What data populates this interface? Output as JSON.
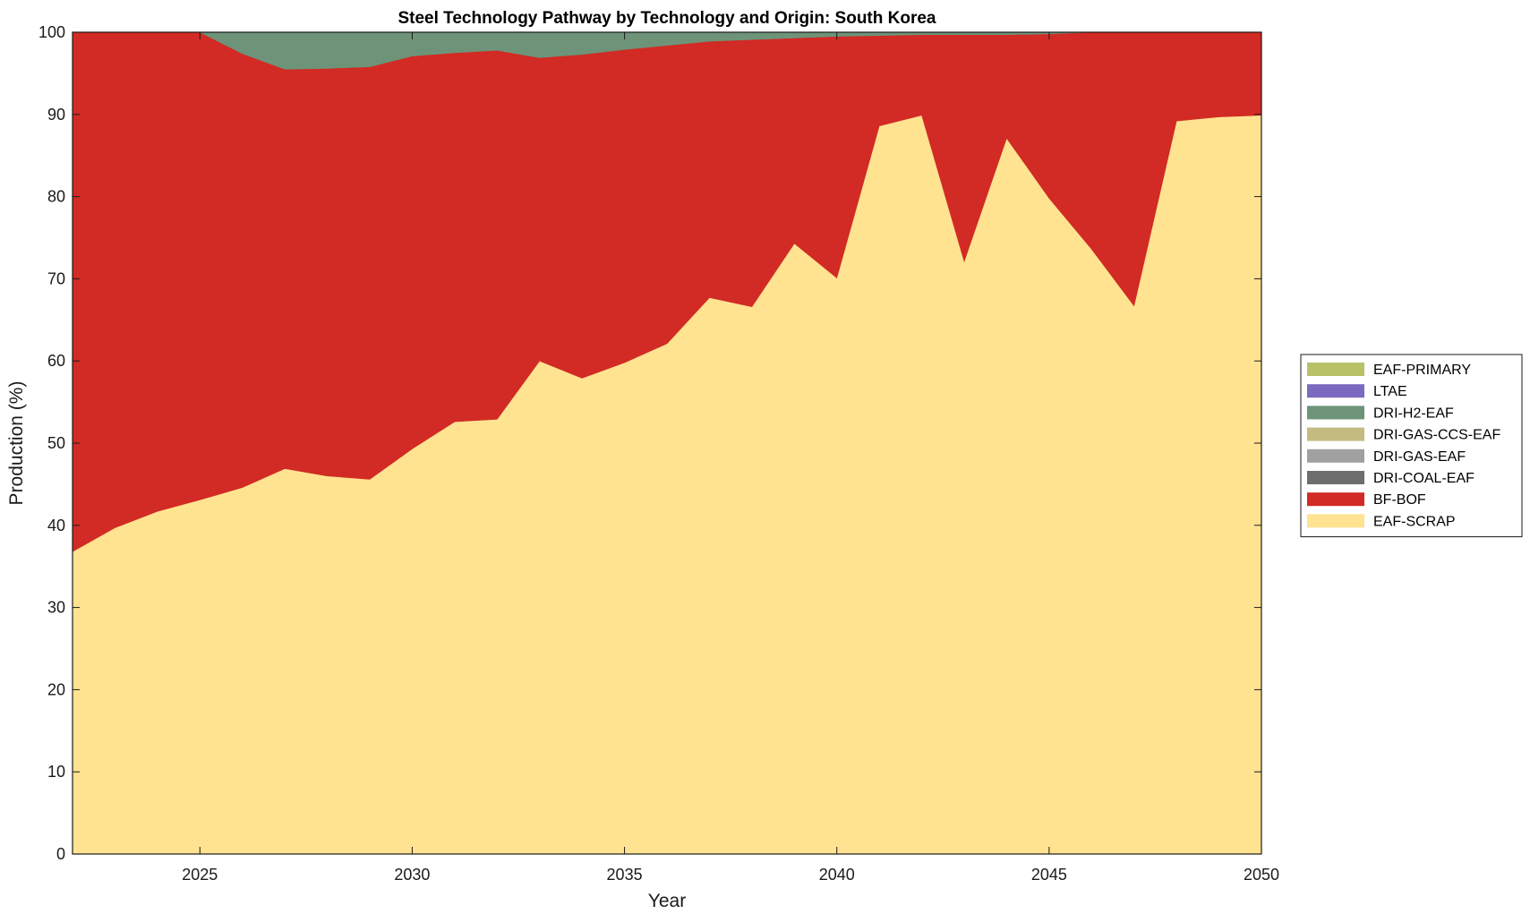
{
  "chart_data": {
    "type": "area",
    "title": "Steel Technology Pathway by Technology and Origin: South Korea",
    "xlabel": "Year",
    "ylabel": "Production (%)",
    "xlim": [
      2022,
      2050
    ],
    "ylim": [
      0,
      100
    ],
    "xticks": [
      2025,
      2030,
      2035,
      2040,
      2045,
      2050
    ],
    "yticks": [
      0,
      10,
      20,
      30,
      40,
      50,
      60,
      70,
      80,
      90,
      100
    ],
    "grid": false,
    "legend_position": "right",
    "x": [
      2022,
      2023,
      2024,
      2025,
      2026,
      2027,
      2028,
      2029,
      2030,
      2031,
      2032,
      2033,
      2034,
      2035,
      2036,
      2037,
      2038,
      2039,
      2040,
      2041,
      2042,
      2043,
      2044,
      2045,
      2046,
      2047,
      2048,
      2049,
      2050
    ],
    "series": [
      {
        "name": "EAF-SCRAP",
        "color": "#ffe391",
        "values": [
          36.8,
          39.7,
          41.7,
          43.1,
          44.6,
          46.9,
          46.0,
          45.6,
          49.3,
          52.6,
          52.9,
          60.0,
          57.9,
          59.8,
          62.1,
          67.7,
          66.6,
          74.3,
          70.1,
          88.6,
          89.9,
          72.1,
          87.1,
          79.8,
          73.6,
          66.7,
          89.2,
          89.7,
          89.9
        ]
      },
      {
        "name": "BF-BOF",
        "color": "#d22a24",
        "values": [
          63.2,
          60.3,
          58.3,
          56.9,
          52.8,
          48.6,
          49.6,
          50.2,
          47.8,
          44.9,
          44.9,
          36.9,
          39.4,
          38.1,
          36.3,
          31.2,
          32.5,
          25.0,
          29.4,
          11.0,
          9.8,
          27.6,
          12.6,
          20.0,
          26.4,
          33.3,
          10.8,
          10.3,
          10.1
        ]
      },
      {
        "name": "DRI-COAL-EAF",
        "color": "#6e6e6e",
        "values": [
          0,
          0,
          0,
          0,
          0,
          0,
          0,
          0,
          0,
          0,
          0,
          0,
          0,
          0,
          0,
          0,
          0,
          0,
          0,
          0,
          0,
          0,
          0,
          0,
          0,
          0,
          0,
          0,
          0
        ]
      },
      {
        "name": "DRI-GAS-EAF",
        "color": "#a0a0a0",
        "values": [
          0,
          0,
          0,
          0,
          0,
          0,
          0,
          0,
          0,
          0,
          0,
          0,
          0,
          0,
          0,
          0,
          0,
          0,
          0,
          0,
          0,
          0,
          0,
          0,
          0,
          0,
          0,
          0,
          0
        ]
      },
      {
        "name": "DRI-GAS-CCS-EAF",
        "color": "#c3bb80",
        "values": [
          0,
          0,
          0,
          0,
          0,
          0,
          0,
          0,
          0,
          0,
          0,
          0,
          0,
          0,
          0,
          0,
          0,
          0,
          0,
          0,
          0,
          0,
          0,
          0,
          0,
          0,
          0,
          0,
          0
        ]
      },
      {
        "name": "DRI-H2-EAF",
        "color": "#6d9479",
        "values": [
          0,
          0,
          0,
          0,
          2.6,
          4.5,
          4.4,
          4.2,
          2.9,
          2.5,
          2.2,
          3.1,
          2.7,
          2.1,
          1.6,
          1.1,
          0.9,
          0.7,
          0.5,
          0.4,
          0.3,
          0.3,
          0.3,
          0.2,
          0,
          0,
          0,
          0,
          0
        ]
      },
      {
        "name": "LTAE",
        "color": "#7b6abf",
        "values": [
          0,
          0,
          0,
          0,
          0,
          0,
          0,
          0,
          0,
          0,
          0,
          0,
          0,
          0,
          0,
          0,
          0,
          0,
          0,
          0,
          0,
          0,
          0,
          0,
          0,
          0,
          0,
          0,
          0
        ]
      },
      {
        "name": "EAF-PRIMARY",
        "color": "#b8c166",
        "values": [
          0,
          0,
          0,
          0,
          0,
          0,
          0,
          0,
          0,
          0,
          0,
          0,
          0,
          0,
          0,
          0,
          0,
          0,
          0,
          0,
          0,
          0,
          0,
          0,
          0,
          0,
          0,
          0,
          0
        ]
      }
    ],
    "legend_order": [
      "EAF-PRIMARY",
      "LTAE",
      "DRI-H2-EAF",
      "DRI-GAS-CCS-EAF",
      "DRI-GAS-EAF",
      "DRI-COAL-EAF",
      "BF-BOF",
      "EAF-SCRAP"
    ]
  }
}
